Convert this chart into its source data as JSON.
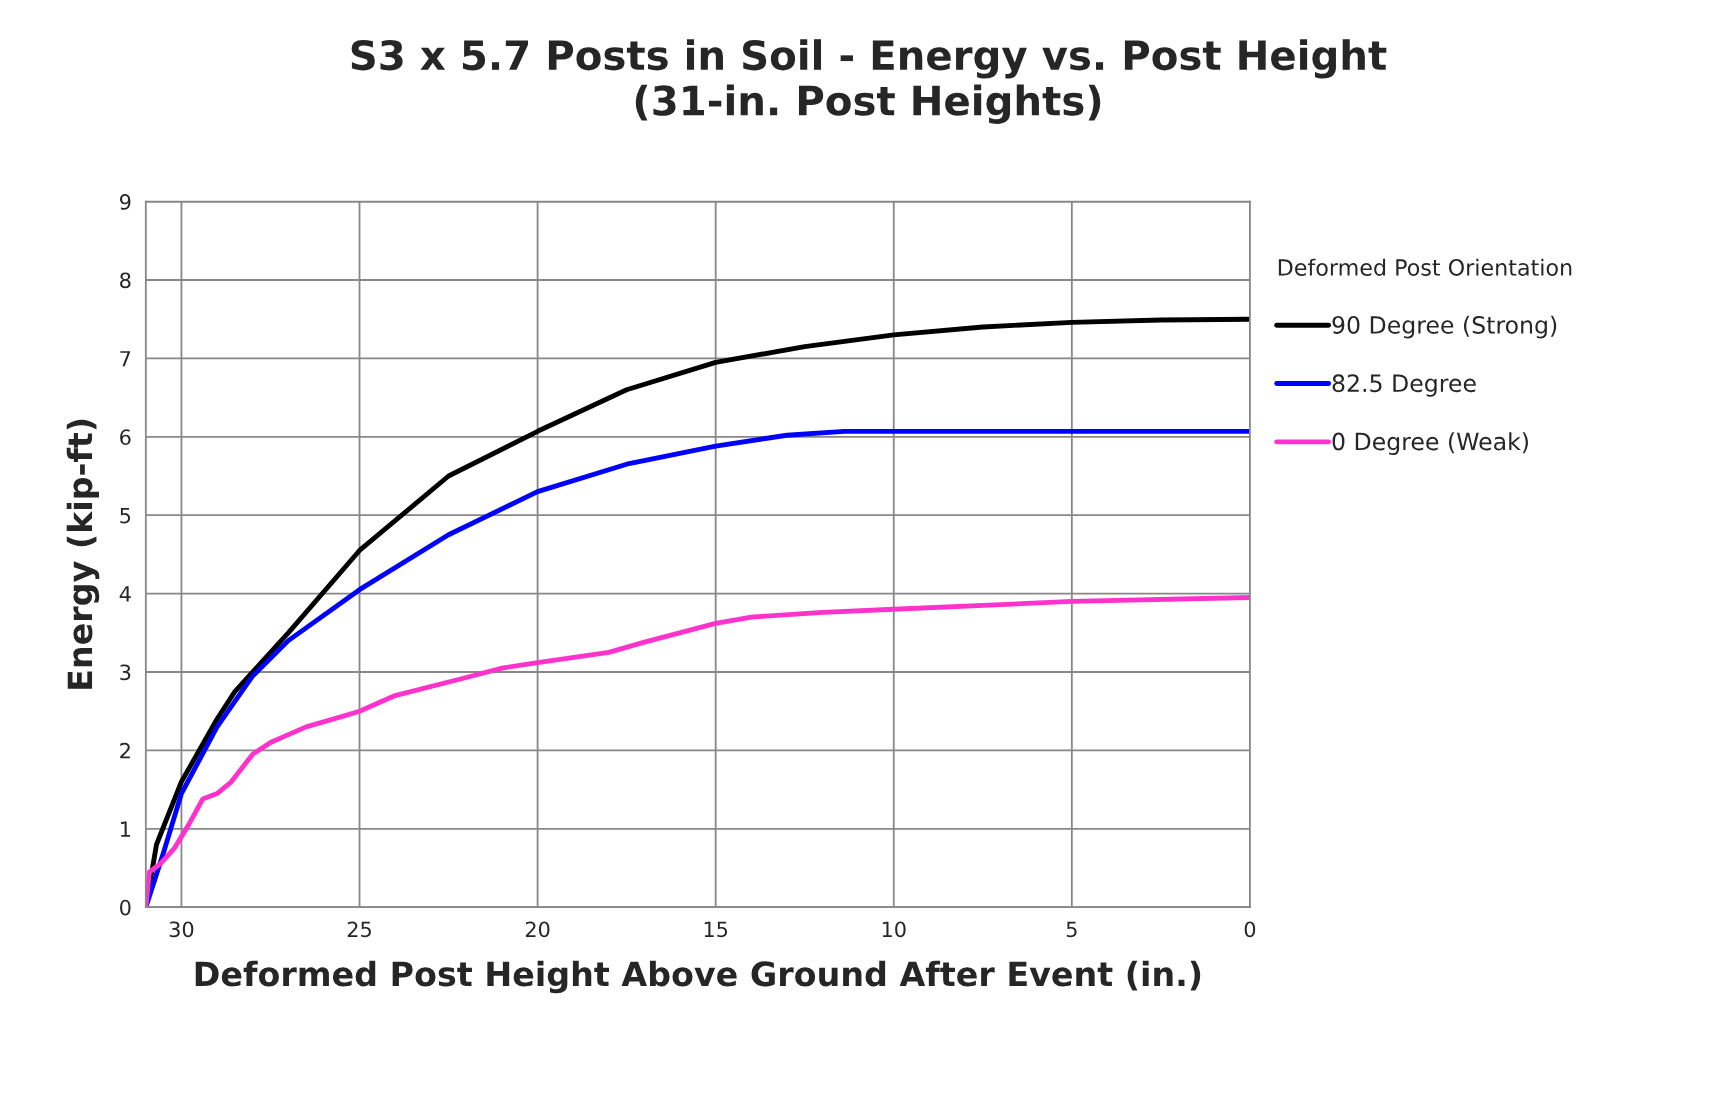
{
  "chart_data": {
    "type": "line",
    "title": "S3 x 5.7 Posts in Soil - Energy vs. Post Height\n(31-in. Post Heights)",
    "xlabel": "Deformed Post Height Above Ground After Event (in.)",
    "ylabel": "Energy (kip-ft)",
    "legend_title": "Deformed Post Orientation",
    "legend": "right",
    "grid": true,
    "line_style": "solid",
    "marker": "none",
    "xlim": [
      31,
      0
    ],
    "xticks": [
      30,
      25,
      20,
      15,
      10,
      5,
      0
    ],
    "ylim": [
      0,
      9
    ],
    "yticks": [
      0,
      1,
      2,
      3,
      4,
      5,
      6,
      7,
      8,
      9
    ],
    "series": [
      {
        "name": "90 Degree (Strong)",
        "color": "#000000",
        "x": [
          31,
          30.7,
          30,
          29,
          28.5,
          27,
          25,
          22.5,
          20,
          17.5,
          15,
          12.5,
          10,
          7.5,
          5,
          2.5,
          0
        ],
        "values": [
          0,
          0.8,
          1.6,
          2.4,
          2.75,
          3.5,
          4.55,
          5.5,
          6.07,
          6.6,
          6.95,
          7.15,
          7.3,
          7.4,
          7.46,
          7.49,
          7.5
        ]
      },
      {
        "name": "82.5 Degree",
        "color": "#0000ff",
        "x": [
          31,
          30.5,
          30,
          29,
          28,
          27,
          25,
          22.5,
          20,
          17.5,
          15,
          13,
          11.4,
          5,
          0
        ],
        "values": [
          0,
          0.7,
          1.45,
          2.3,
          2.95,
          3.4,
          4.05,
          4.75,
          5.3,
          5.65,
          5.88,
          6.02,
          6.07,
          6.07,
          6.07
        ]
      },
      {
        "name": "0 Degree (Weak)",
        "color": "#ff33cc",
        "x": [
          31,
          30.9,
          30.6,
          30.2,
          29.8,
          29.4,
          29,
          28.6,
          28,
          27.5,
          26.5,
          25.5,
          25,
          24,
          22,
          21,
          20,
          18,
          17,
          15,
          14,
          12,
          10,
          5,
          0
        ],
        "values": [
          0,
          0.45,
          0.55,
          0.75,
          1.05,
          1.38,
          1.45,
          1.6,
          1.95,
          2.1,
          2.3,
          2.43,
          2.5,
          2.7,
          2.93,
          3.05,
          3.12,
          3.25,
          3.38,
          3.62,
          3.7,
          3.76,
          3.8,
          3.9,
          3.95
        ]
      }
    ]
  }
}
